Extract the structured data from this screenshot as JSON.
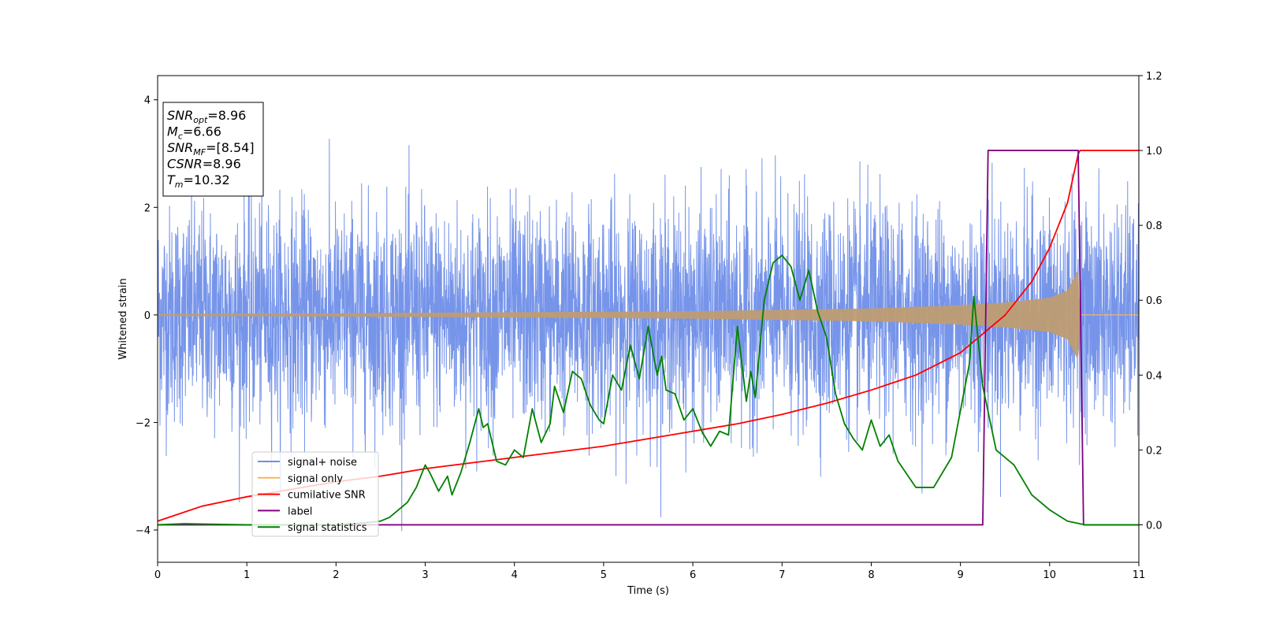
{
  "chart_data": {
    "type": "line",
    "xlabel": "Time (s)",
    "ylabel": "Whitened strain",
    "xlim": [
      0,
      11
    ],
    "ylim_left": [
      -4.6,
      4.45
    ],
    "ylim_right": [
      -0.1,
      1.2
    ],
    "x_ticks": [
      0,
      1,
      2,
      3,
      4,
      5,
      6,
      7,
      8,
      9,
      10,
      11
    ],
    "y_ticks_left": [
      -4,
      -2,
      0,
      2,
      4
    ],
    "y_ticks_right": [
      0.0,
      0.2,
      0.4,
      0.6,
      0.8,
      1.0,
      1.2
    ],
    "grid": false,
    "legend_position": "lower-left",
    "info_box": {
      "snr_opt": {
        "sym": "SNR",
        "sub": "opt",
        "value": "=8.96"
      },
      "mc": {
        "sym": "M",
        "sub": "c",
        "value": "=6.66"
      },
      "snr_mf": {
        "sym": "SNR",
        "sub": "MF",
        "value": "=[8.54]"
      },
      "csnr": {
        "sym": "CSNR",
        "sub": "",
        "value": "=8.96"
      },
      "tm": {
        "sym": "T",
        "sub": "m",
        "value": "=10.32"
      }
    },
    "series": [
      {
        "name": "signal+ noise",
        "axis": "left",
        "color": "#6f8ee8",
        "description_values": "gaussian noise, amplitude approx. +/-2.5 (peaks to +/-3.6), spanning x=0..11"
      },
      {
        "name": "signal only",
        "axis": "left",
        "color": "#f5b562",
        "envelope": {
          "x": [
            0,
            2,
            4,
            6,
            8,
            9,
            9.5,
            10,
            10.2,
            10.32,
            10.34,
            11
          ],
          "amp": [
            0.02,
            0.03,
            0.05,
            0.07,
            0.12,
            0.18,
            0.23,
            0.32,
            0.45,
            0.85,
            0.0,
            0.0
          ]
        }
      },
      {
        "name": "cumilative SNR",
        "axis": "right",
        "color": "#ff0000",
        "x": [
          0,
          0.5,
          1,
          1.5,
          2,
          2.5,
          3,
          3.5,
          4,
          4.5,
          5,
          5.5,
          6,
          6.5,
          7,
          7.5,
          8,
          8.5,
          9,
          9.5,
          9.8,
          10,
          10.2,
          10.32,
          10.34,
          11
        ],
        "y": [
          0.01,
          0.05,
          0.075,
          0.095,
          0.115,
          0.13,
          0.15,
          0.165,
          0.18,
          0.195,
          0.21,
          0.23,
          0.25,
          0.27,
          0.295,
          0.325,
          0.36,
          0.4,
          0.46,
          0.56,
          0.65,
          0.74,
          0.86,
          0.99,
          1.0,
          1.0
        ]
      },
      {
        "name": "label",
        "axis": "right",
        "color": "#800080",
        "x": [
          0,
          9.25,
          9.31,
          10.32,
          10.38,
          11
        ],
        "y": [
          0.0,
          0.0,
          1.0,
          1.0,
          0.0,
          0.0
        ]
      },
      {
        "name": "signal statistics",
        "axis": "right",
        "color": "#008000",
        "x": [
          0,
          0.3,
          1.0,
          2.0,
          2.3,
          2.5,
          2.6,
          2.7,
          2.8,
          2.9,
          3.0,
          3.05,
          3.15,
          3.25,
          3.3,
          3.4,
          3.5,
          3.6,
          3.65,
          3.7,
          3.8,
          3.9,
          4.0,
          4.1,
          4.2,
          4.3,
          4.4,
          4.45,
          4.55,
          4.65,
          4.75,
          4.85,
          4.95,
          5.0,
          5.1,
          5.2,
          5.3,
          5.4,
          5.5,
          5.6,
          5.65,
          5.7,
          5.8,
          5.9,
          6.0,
          6.1,
          6.2,
          6.3,
          6.4,
          6.5,
          6.6,
          6.65,
          6.7,
          6.8,
          6.9,
          7.0,
          7.1,
          7.2,
          7.3,
          7.4,
          7.5,
          7.6,
          7.7,
          7.8,
          7.9,
          8.0,
          8.1,
          8.2,
          8.3,
          8.5,
          8.7,
          8.9,
          9.1,
          9.15,
          9.25,
          9.4,
          9.6,
          9.8,
          10.0,
          10.2,
          10.4,
          11
        ],
        "y": [
          0.0,
          0.003,
          0.0,
          0.0,
          0.005,
          0.01,
          0.02,
          0.04,
          0.06,
          0.1,
          0.16,
          0.14,
          0.09,
          0.13,
          0.08,
          0.14,
          0.22,
          0.31,
          0.26,
          0.27,
          0.17,
          0.16,
          0.2,
          0.18,
          0.31,
          0.22,
          0.27,
          0.37,
          0.3,
          0.41,
          0.39,
          0.32,
          0.28,
          0.27,
          0.4,
          0.36,
          0.48,
          0.39,
          0.53,
          0.4,
          0.45,
          0.36,
          0.35,
          0.28,
          0.31,
          0.25,
          0.21,
          0.25,
          0.24,
          0.53,
          0.33,
          0.41,
          0.34,
          0.6,
          0.7,
          0.72,
          0.69,
          0.6,
          0.68,
          0.57,
          0.5,
          0.35,
          0.27,
          0.23,
          0.2,
          0.28,
          0.21,
          0.24,
          0.17,
          0.1,
          0.1,
          0.18,
          0.43,
          0.61,
          0.37,
          0.2,
          0.16,
          0.08,
          0.04,
          0.01,
          0.0,
          0.0
        ]
      }
    ]
  }
}
